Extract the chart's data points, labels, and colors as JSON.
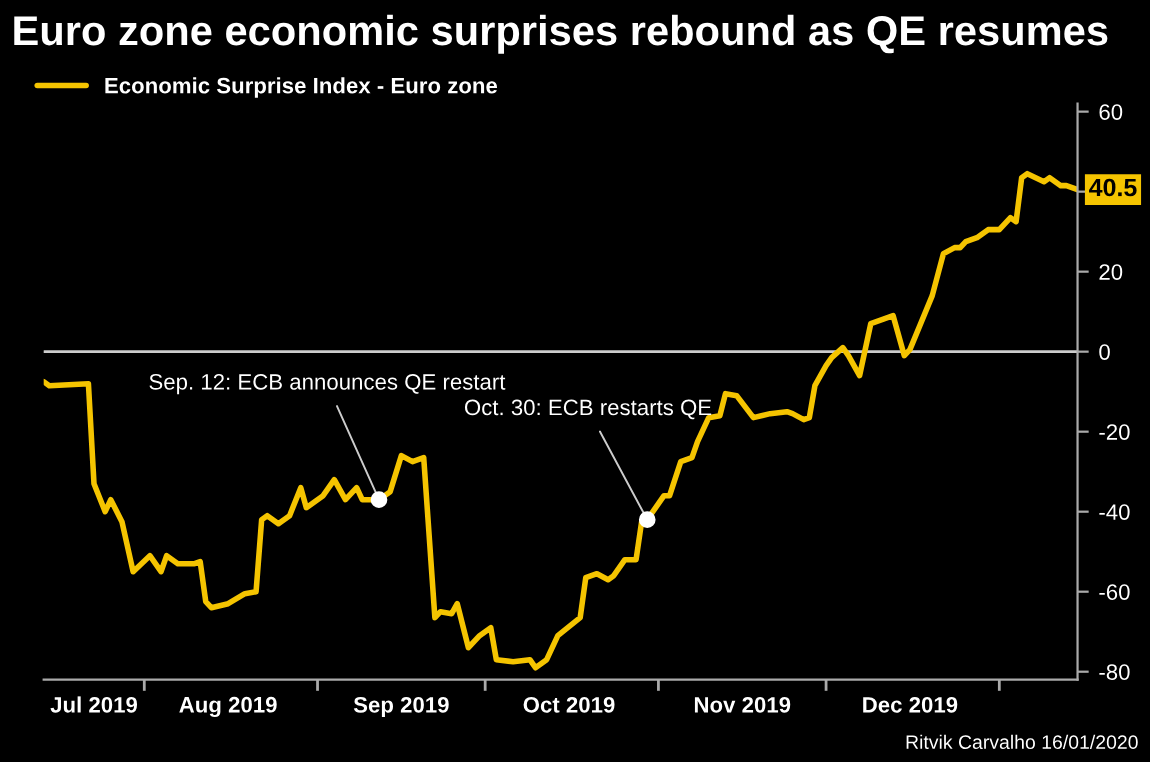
{
  "chart_data": {
    "type": "line",
    "title": "Euro zone economic surprises rebound as QE resumes",
    "x": [
      "2019-07-14",
      "2019-07-15",
      "2019-07-22",
      "2019-07-23",
      "2019-07-25",
      "2019-07-26",
      "2019-07-28",
      "2019-07-30",
      "2019-08-02",
      "2019-08-04",
      "2019-08-05",
      "2019-08-07",
      "2019-08-10",
      "2019-08-11",
      "2019-08-12",
      "2019-08-13",
      "2019-08-16",
      "2019-08-19",
      "2019-08-21",
      "2019-08-22",
      "2019-08-23",
      "2019-08-25",
      "2019-08-27",
      "2019-08-29",
      "2019-08-30",
      "2019-09-02",
      "2019-09-04",
      "2019-09-06",
      "2019-09-08",
      "2019-09-09",
      "2019-09-12",
      "2019-09-14",
      "2019-09-16",
      "2019-09-18",
      "2019-09-20",
      "2019-09-22",
      "2019-09-23",
      "2019-09-25",
      "2019-09-26",
      "2019-09-28",
      "2019-09-30",
      "2019-10-02",
      "2019-10-03",
      "2019-10-06",
      "2019-10-09",
      "2019-10-10",
      "2019-10-12",
      "2019-10-14",
      "2019-10-18",
      "2019-10-19",
      "2019-10-21",
      "2019-10-23",
      "2019-10-24",
      "2019-10-26",
      "2019-10-28",
      "2019-10-29",
      "2019-10-30",
      "2019-11-02",
      "2019-11-03",
      "2019-11-05",
      "2019-11-07",
      "2019-11-08",
      "2019-11-10",
      "2019-11-12",
      "2019-11-13",
      "2019-11-15",
      "2019-11-18",
      "2019-11-21",
      "2019-11-24",
      "2019-11-25",
      "2019-11-27",
      "2019-11-28",
      "2019-11-29",
      "2019-12-01",
      "2019-12-02",
      "2019-12-04",
      "2019-12-05",
      "2019-12-07",
      "2019-12-09",
      "2019-12-13",
      "2019-12-15",
      "2019-12-16",
      "2019-12-20",
      "2019-12-22",
      "2019-12-24",
      "2019-12-25",
      "2019-12-26",
      "2019-12-28",
      "2019-12-30",
      "2020-01-01",
      "2020-01-03",
      "2020-01-04",
      "2020-01-05",
      "2020-01-06",
      "2020-01-09",
      "2020-01-10",
      "2020-01-12",
      "2020-01-13",
      "2020-01-15"
    ],
    "series": [
      {
        "name": "Economic Surprise Index - Euro zone",
        "color": "#f5c400",
        "values": [
          -7.5,
          -8.5,
          -8,
          -33,
          -40,
          -37,
          -42.5,
          -55,
          -51,
          -55,
          -51,
          -53,
          -53,
          -52.5,
          -62.5,
          -64,
          -63,
          -60.5,
          -60,
          -42,
          -41,
          -43,
          -41,
          -34,
          -39,
          -36,
          -32,
          -37,
          -34,
          -37,
          -37,
          -35,
          -26,
          -27.5,
          -26.5,
          -66.5,
          -65,
          -65.5,
          -63,
          -74,
          -71,
          -69,
          -77,
          -77.5,
          -77,
          -79,
          -77,
          -71,
          -66.5,
          -56.5,
          -55.5,
          -57,
          -56,
          -52,
          -52,
          -42.5,
          -42,
          -36,
          -36,
          -27.5,
          -26.5,
          -22.5,
          -16.5,
          -16,
          -10.5,
          -11,
          -16.5,
          -15.5,
          -15,
          -15.5,
          -17,
          -16.5,
          -8.5,
          -3.5,
          -1.5,
          1,
          -1,
          -6,
          7,
          9,
          -1,
          0.5,
          14,
          24.5,
          26,
          26,
          27.5,
          28.5,
          30.5,
          30.5,
          33.5,
          32.5,
          43.5,
          44.5,
          42.5,
          43.5,
          41.5,
          41.5,
          40.5
        ],
        "value_labels": [
          null,
          null,
          null,
          null,
          null,
          null,
          null,
          null,
          null,
          null,
          null,
          null,
          null,
          null,
          null,
          null,
          null,
          null,
          null,
          null,
          null,
          null,
          null,
          null,
          null,
          null,
          null,
          null,
          null,
          null,
          null,
          null,
          null,
          null,
          null,
          null,
          null,
          null,
          null,
          null,
          null,
          null,
          null,
          null,
          null,
          null,
          null,
          null,
          null,
          null,
          null,
          null,
          null,
          null,
          null,
          null,
          null,
          null,
          null,
          null,
          null,
          null,
          null,
          null,
          null,
          null,
          null,
          null,
          null,
          null,
          null,
          null,
          null,
          null,
          null,
          null,
          null,
          null,
          null,
          null,
          null,
          null,
          null,
          null,
          null,
          null,
          null,
          null,
          null,
          null,
          null,
          null,
          null,
          null,
          null,
          null,
          null,
          null,
          "40.5"
        ]
      }
    ],
    "xlim": [
      "2019-07-14",
      "2020-01-15"
    ],
    "xticks": [
      {
        "value": "2019-08-01",
        "label": null
      },
      {
        "value": "2019-09-01",
        "label": null
      },
      {
        "value": "2019-10-01",
        "label": null
      },
      {
        "value": "2019-11-01",
        "label": null
      },
      {
        "value": "2019-12-01",
        "label": null
      },
      {
        "value": "2020-01-01",
        "label": null
      },
      {
        "value": "2019-07-23",
        "label": "Jul 2019"
      },
      {
        "value": "2019-08-16",
        "label": "Aug 2019"
      },
      {
        "value": "2019-09-16",
        "label": "Sep 2019"
      },
      {
        "value": "2019-10-16",
        "label": "Oct 2019"
      },
      {
        "value": "2019-11-16",
        "label": "Nov 2019"
      },
      {
        "value": "2019-12-16",
        "label": "Dec 2019"
      }
    ],
    "ylim": [
      -82,
      62
    ],
    "yticks": [
      -80,
      -60,
      -40,
      -20,
      0,
      20,
      {
        "value": 40,
        "label": null
      },
      60
    ],
    "ref_lines": [
      {
        "axis": "y",
        "value": 0,
        "color": "#cccccc"
      }
    ],
    "annotations": [
      {
        "text": "Sep. 12: ECB announces QE restart",
        "x": "2019-09-12",
        "y": -37
      },
      {
        "text": "Oct. 30: ECB restarts QE",
        "x": "2019-10-30",
        "y": -42
      },
      "Ritvik Carvalho 16/01/2020"
    ],
    "legend": "top left",
    "grid": false,
    "marker": "none",
    "line_style": "solid"
  }
}
